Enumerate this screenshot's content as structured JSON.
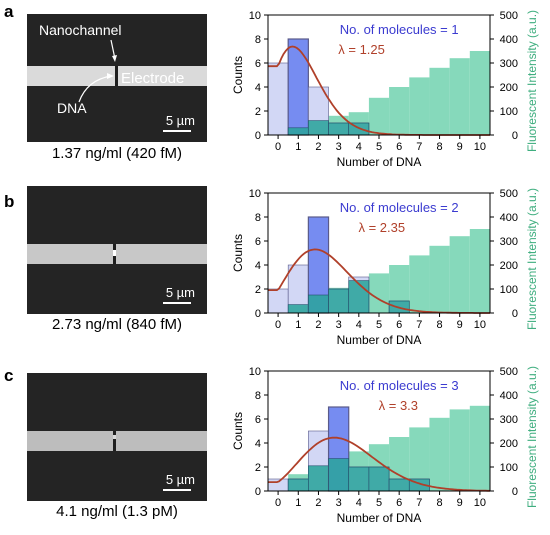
{
  "panels": [
    {
      "label": "a",
      "concentration": "1.37 ng/ml (420 fM)",
      "scale_bar": "5 µm",
      "annotations": {
        "nanochannel": "Nanochannel",
        "electrode": "Electrode",
        "dna": "DNA"
      },
      "channel_brightness": 0.82
    },
    {
      "label": "b",
      "concentration": "2.73 ng/ml (840 fM)",
      "scale_bar": "5 µm",
      "channel_brightness": 0.72
    },
    {
      "label": "c",
      "concentration": "4.1 ng/ml (1.3 pM)",
      "scale_bar": "5 µm",
      "channel_brightness": 0.68
    }
  ],
  "colors": {
    "counts_bar": "#c7cdf3",
    "molecules_bar": "#6f86f0",
    "intensity_bar": "#86d9bb",
    "highlight_bar": "#2aa39b",
    "poisson_curve": "#b0402a",
    "molecules_text": "#3b3bd0",
    "lambda_text": "#b0402a",
    "right_axis_text": "#3fae7f"
  },
  "chart_data": [
    {
      "type": "bar",
      "xlabel": "Number of DNA",
      "ylabel": "Counts",
      "y2label": "Fluorescent Intensity (a.u.)",
      "ylim": [
        0,
        10
      ],
      "y2lim": [
        0,
        500
      ],
      "xlim": [
        -0.5,
        10.5
      ],
      "x_ticks": [
        0,
        1,
        2,
        3,
        4,
        5,
        6,
        7,
        8,
        9,
        10
      ],
      "y_ticks": [
        0,
        2,
        4,
        6,
        8,
        10
      ],
      "y2_ticks": [
        0,
        100,
        200,
        300,
        400,
        500
      ],
      "molecules_text": "No. of molecules = 1",
      "lambda_text": "λ = 1.25",
      "lambda": 1.25,
      "n_total": 20,
      "highlight_index": 1,
      "counts": [
        6,
        8,
        4,
        1,
        1,
        0,
        0,
        0,
        0,
        0,
        0
      ],
      "intensity": [
        0,
        30,
        60,
        80,
        95,
        155,
        200,
        240,
        280,
        320,
        350
      ]
    },
    {
      "type": "bar",
      "xlabel": "Number of DNA",
      "ylabel": "Counts",
      "y2label": "Fluorescent Intensity (a.u.)",
      "ylim": [
        0,
        10
      ],
      "y2lim": [
        0,
        500
      ],
      "xlim": [
        -0.5,
        10.5
      ],
      "x_ticks": [
        0,
        1,
        2,
        3,
        4,
        5,
        6,
        7,
        8,
        9,
        10
      ],
      "y_ticks": [
        0,
        2,
        4,
        6,
        8,
        10
      ],
      "y2_ticks": [
        0,
        100,
        200,
        300,
        400,
        500
      ],
      "molecules_text": "No. of molecules = 2",
      "lambda_text": "λ = 2.35",
      "lambda": 2.35,
      "n_total": 20,
      "highlight_index": 2,
      "counts": [
        2,
        4,
        8,
        2,
        3,
        0,
        1,
        0,
        0,
        0,
        0
      ],
      "intensity": [
        0,
        35,
        75,
        105,
        135,
        165,
        200,
        240,
        280,
        320,
        350
      ]
    },
    {
      "type": "bar",
      "xlabel": "Number of DNA",
      "ylabel": "Counts",
      "y2label": "Fluorescent Intensity (a.u.)",
      "ylim": [
        0,
        10
      ],
      "y2lim": [
        0,
        500
      ],
      "xlim": [
        -0.5,
        10.5
      ],
      "x_ticks": [
        0,
        1,
        2,
        3,
        4,
        5,
        6,
        7,
        8,
        9,
        10
      ],
      "y_ticks": [
        0,
        2,
        4,
        6,
        8,
        10
      ],
      "y2_ticks": [
        0,
        100,
        200,
        300,
        400,
        500
      ],
      "molecules_text": "No. of molecules = 3",
      "lambda_text": "λ = 3.3",
      "lambda": 3.3,
      "n_total": 20,
      "highlight_index": 3,
      "counts": [
        1,
        1,
        5,
        7,
        2,
        2,
        1,
        1,
        0,
        0,
        0
      ],
      "intensity": [
        0,
        70,
        105,
        135,
        165,
        195,
        225,
        265,
        305,
        340,
        355
      ]
    }
  ]
}
